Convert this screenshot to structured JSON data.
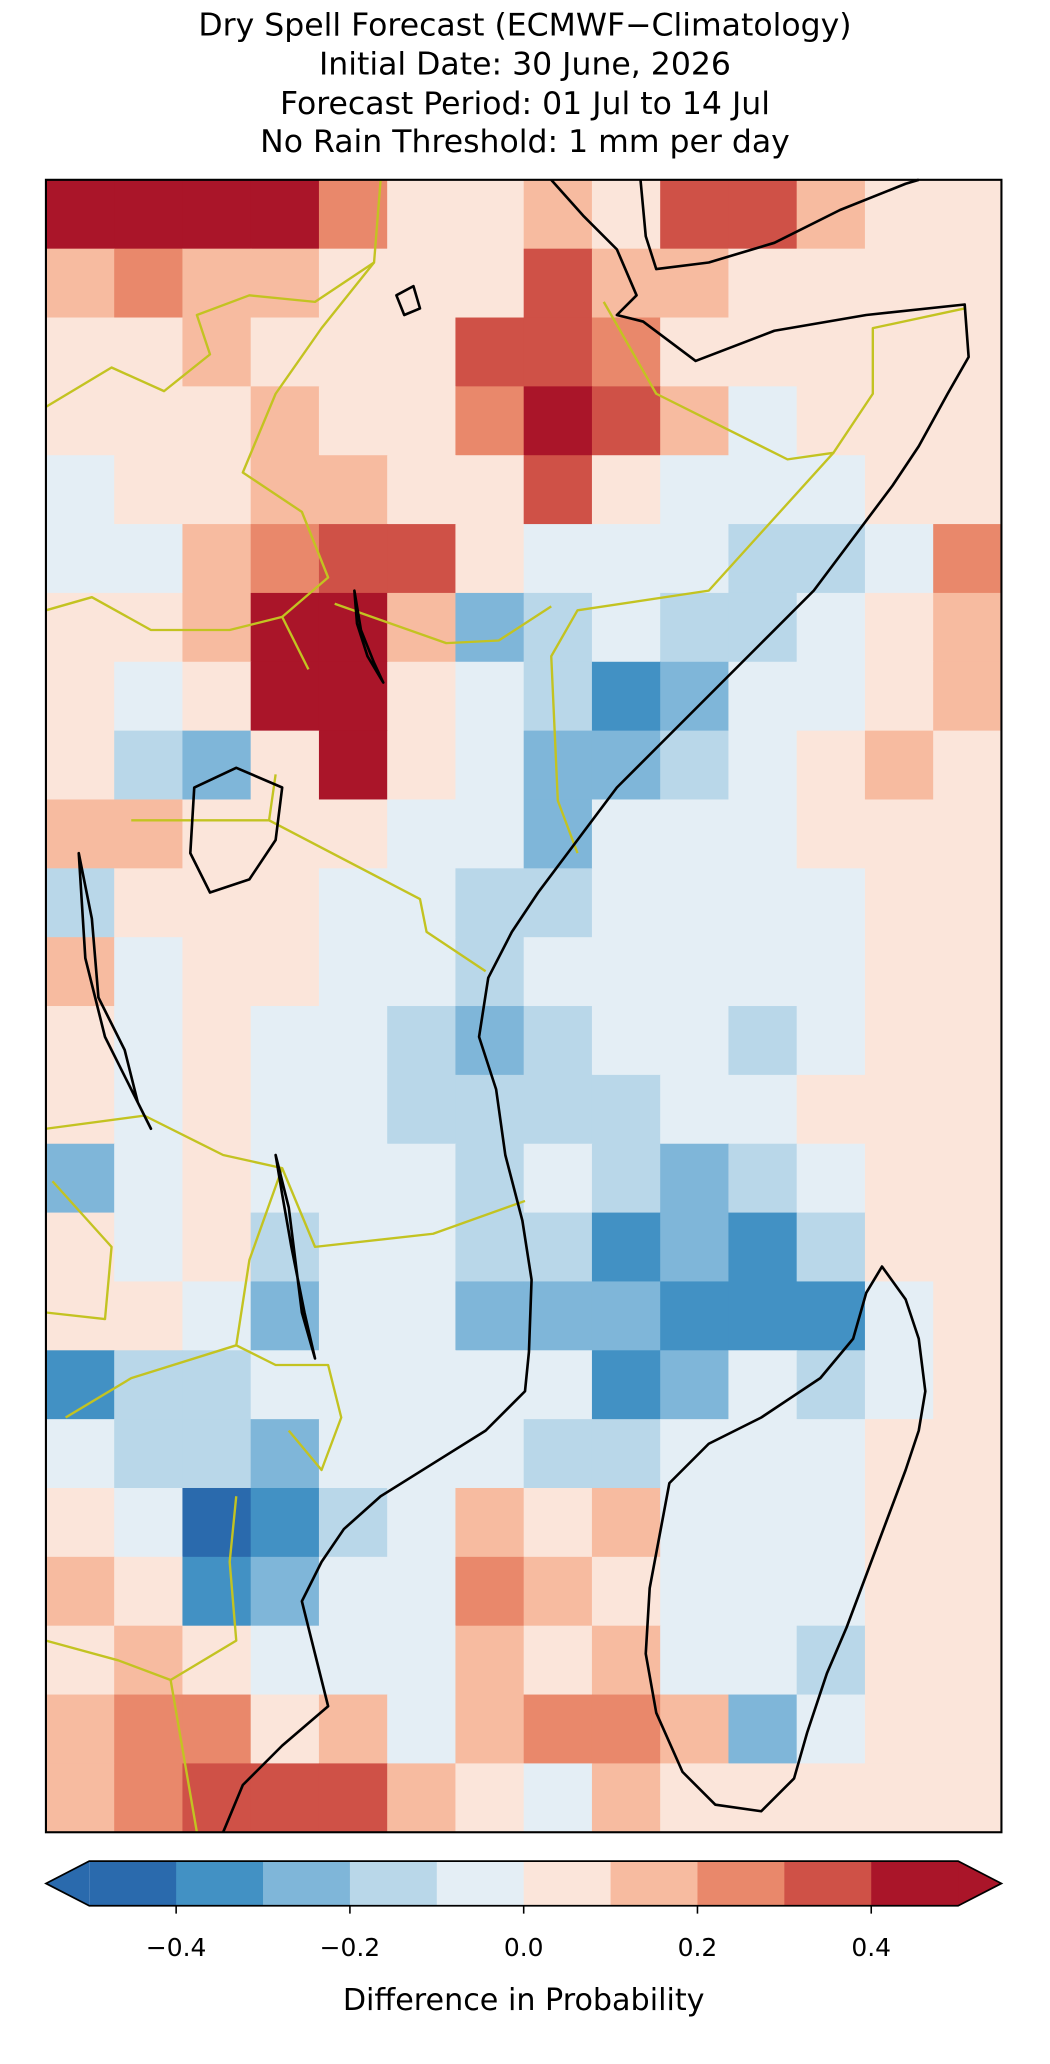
{
  "title": [
    "Dry Spell Forecast (ECMWF−Climatology)",
    "Initial Date: 30 June, 2026",
    "Forecast Period: 01 Jul to 14 Jul",
    "No Rain Threshold: 1 mm per day"
  ],
  "map": {
    "values": [
      [
        0.45,
        0.45,
        0.45,
        0.4,
        0.2,
        0.05,
        0.05,
        0.1,
        0.05,
        0.3,
        0.3,
        0.15,
        0.05,
        0.05
      ],
      [
        0.15,
        0.2,
        0.15,
        0.15,
        0.05,
        0.05,
        0.05,
        0.3,
        0.15,
        0.1,
        0.05,
        0.05,
        0.05,
        0.05
      ],
      [
        0.05,
        0.05,
        0.1,
        0.05,
        0.05,
        0.05,
        0.35,
        0.35,
        0.2,
        0.05,
        0.05,
        0.05,
        0.05,
        0.05
      ],
      [
        0.05,
        0.05,
        0.05,
        0.1,
        0.05,
        0.05,
        0.2,
        0.4,
        0.35,
        0.1,
        -0.05,
        0.05,
        0.05,
        0.05
      ],
      [
        -0.05,
        0.05,
        0.05,
        0.1,
        0.15,
        0.05,
        0.05,
        0.35,
        0.05,
        -0.1,
        -0.05,
        -0.05,
        0.05,
        0.05
      ],
      [
        -0.05,
        -0.05,
        0.1,
        0.25,
        0.35,
        0.3,
        0.05,
        -0.05,
        -0.1,
        -0.1,
        -0.15,
        -0.15,
        -0.05,
        0.25
      ],
      [
        0.05,
        0.05,
        0.15,
        0.45,
        0.4,
        0.1,
        -0.3,
        -0.15,
        -0.1,
        -0.15,
        -0.15,
        -0.1,
        0.05,
        0.1
      ],
      [
        0.05,
        -0.05,
        0.05,
        0.4,
        0.45,
        0.05,
        -0.05,
        -0.2,
        -0.35,
        -0.3,
        -0.1,
        -0.05,
        0.05,
        0.1
      ],
      [
        0.05,
        -0.15,
        -0.25,
        0.05,
        0.4,
        0.05,
        -0.05,
        -0.25,
        -0.25,
        -0.15,
        -0.05,
        0.05,
        0.1,
        0.05
      ],
      [
        0.1,
        0.15,
        0.05,
        0.05,
        0.05,
        -0.05,
        -0.1,
        -0.3,
        -0.1,
        -0.05,
        -0.1,
        0.05,
        0.05,
        0.05
      ],
      [
        -0.15,
        0.05,
        0.05,
        0.05,
        -0.05,
        -0.1,
        -0.15,
        -0.2,
        -0.05,
        -0.1,
        -0.05,
        -0.05,
        0.05,
        0.05
      ],
      [
        0.1,
        -0.05,
        0.05,
        0.05,
        -0.05,
        -0.1,
        -0.15,
        -0.05,
        -0.05,
        -0.1,
        -0.1,
        -0.05,
        0.05,
        0.05
      ],
      [
        0.05,
        -0.05,
        0.05,
        -0.05,
        -0.05,
        -0.2,
        -0.25,
        -0.2,
        -0.05,
        -0.05,
        -0.15,
        -0.05,
        0.05,
        0.05
      ],
      [
        0.05,
        -0.05,
        0.05,
        -0.05,
        -0.1,
        -0.2,
        -0.15,
        -0.15,
        -0.15,
        -0.05,
        -0.05,
        0.05,
        0.05,
        0.05
      ],
      [
        -0.3,
        -0.05,
        0.05,
        -0.05,
        -0.1,
        -0.1,
        -0.15,
        -0.1,
        -0.15,
        -0.25,
        -0.15,
        -0.05,
        0.05,
        0.05
      ],
      [
        0.05,
        -0.05,
        0.05,
        -0.2,
        -0.1,
        -0.1,
        -0.2,
        -0.15,
        -0.35,
        -0.3,
        -0.35,
        -0.2,
        0.05,
        0.05
      ],
      [
        0.05,
        0.05,
        -0.05,
        -0.3,
        -0.1,
        -0.1,
        -0.25,
        -0.25,
        -0.3,
        -0.4,
        -0.4,
        -0.35,
        -0.1,
        0.05
      ],
      [
        -0.35,
        -0.2,
        -0.15,
        -0.1,
        -0.1,
        -0.05,
        -0.1,
        -0.1,
        -0.35,
        -0.3,
        -0.1,
        -0.2,
        -0.1,
        0.05
      ],
      [
        -0.05,
        -0.15,
        -0.2,
        -0.25,
        -0.1,
        -0.05,
        -0.05,
        -0.15,
        -0.2,
        -0.05,
        -0.05,
        -0.05,
        0.05,
        0.05
      ],
      [
        0.05,
        -0.1,
        -0.45,
        -0.4,
        -0.2,
        -0.05,
        0.15,
        0.05,
        0.1,
        -0.05,
        -0.05,
        -0.05,
        0.05,
        0.05
      ],
      [
        0.15,
        0.05,
        -0.35,
        -0.3,
        -0.1,
        -0.05,
        0.2,
        0.1,
        0.05,
        -0.05,
        -0.05,
        -0.1,
        0.05,
        0.05
      ],
      [
        0.05,
        0.1,
        0.05,
        -0.05,
        -0.05,
        -0.05,
        0.15,
        0.05,
        0.15,
        -0.05,
        -0.1,
        -0.15,
        0.05,
        0.05
      ],
      [
        0.15,
        0.25,
        0.2,
        0.05,
        0.1,
        -0.05,
        0.1,
        0.2,
        0.2,
        0.1,
        -0.25,
        -0.05,
        0.05,
        0.05
      ],
      [
        0.15,
        0.25,
        0.3,
        0.35,
        0.3,
        0.1,
        0.05,
        -0.05,
        0.15,
        0.05,
        0.05,
        0.05,
        0.05,
        0.05
      ]
    ]
  },
  "colorbar": {
    "label": "Difference in Probability",
    "extend": "both",
    "levels": [
      -0.5,
      -0.4,
      -0.3,
      -0.2,
      -0.1,
      0,
      0.1,
      0.2,
      0.3,
      0.4,
      0.5
    ],
    "colors": [
      "#2a6aad",
      "#4291c4",
      "#7fb6d9",
      "#b9d7e9",
      "#e4eef5",
      "#fbe5da",
      "#f7bba0",
      "#e9886b",
      "#cf5147",
      "#aa1529"
    ],
    "ticks": [
      {
        "value": -0.4,
        "label": "−0.4"
      },
      {
        "value": -0.2,
        "label": "−0.2"
      },
      {
        "value": 0,
        "label": "0.0"
      },
      0.2,
      0.4
    ]
  }
}
